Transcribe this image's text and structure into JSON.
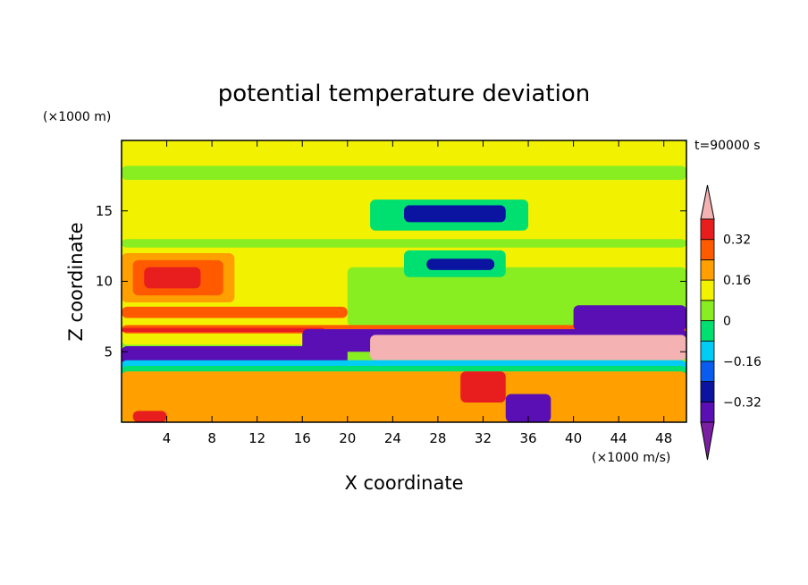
{
  "chart_data": {
    "type": "heatmap",
    "title": "potential temperature deviation",
    "xlabel": "X coordinate",
    "ylabel": "Z coordinate",
    "x_unit": "(×1000 m/s)",
    "y_unit": "(×1000 m)",
    "time_label": "t=90000 s",
    "xlim": [
      0,
      50
    ],
    "ylim": [
      0,
      20
    ],
    "x_ticks": [
      4,
      8,
      12,
      16,
      20,
      24,
      28,
      32,
      36,
      40,
      44,
      48
    ],
    "y_ticks": [
      5,
      10,
      15
    ],
    "colorbar": {
      "levels": [
        -0.4,
        -0.32,
        -0.24,
        -0.16,
        -0.08,
        0,
        0.08,
        0.16,
        0.24,
        0.32,
        0.4
      ],
      "labels": [
        "0.32",
        "0.16",
        "0",
        "−0.16",
        "−0.32"
      ],
      "label_values": [
        0.32,
        0.16,
        0,
        -0.16,
        -0.32
      ],
      "colors": [
        "#7a1fa2",
        "#5a0fb4",
        "#0a14a0",
        "#0a5cf0",
        "#00ccf5",
        "#00e070",
        "#88ee22",
        "#f2f200",
        "#ffa000",
        "#ff5a00",
        "#e81e1e",
        "#f4b2b2"
      ],
      "extend": "both"
    },
    "regions": [
      {
        "value": 0.08,
        "x": [
          0,
          50
        ],
        "z": [
          5.5,
          20
        ]
      },
      {
        "value": 0.0,
        "x": [
          0,
          50
        ],
        "z": [
          17.2,
          18.2
        ]
      },
      {
        "value": 0.0,
        "x": [
          0,
          50
        ],
        "z": [
          12.4,
          13.0
        ]
      },
      {
        "value": 0.0,
        "x": [
          20,
          50
        ],
        "z": [
          6.8,
          11.0
        ]
      },
      {
        "value": -0.08,
        "x": [
          22,
          36
        ],
        "z": [
          13.6,
          15.8
        ]
      },
      {
        "value": -0.32,
        "x": [
          25,
          34
        ],
        "z": [
          14.2,
          15.4
        ]
      },
      {
        "value": -0.08,
        "x": [
          25,
          34
        ],
        "z": [
          10.3,
          12.2
        ]
      },
      {
        "value": -0.32,
        "x": [
          27,
          33
        ],
        "z": [
          10.8,
          11.6
        ]
      },
      {
        "value": 0.16,
        "x": [
          0,
          10
        ],
        "z": [
          8.5,
          12.0
        ]
      },
      {
        "value": 0.24,
        "x": [
          1,
          9
        ],
        "z": [
          9.0,
          11.5
        ]
      },
      {
        "value": 0.32,
        "x": [
          2,
          7
        ],
        "z": [
          9.5,
          11.0
        ]
      },
      {
        "value": 0.24,
        "x": [
          0,
          20
        ],
        "z": [
          7.4,
          8.2
        ]
      },
      {
        "value": 0.24,
        "x": [
          0,
          50
        ],
        "z": [
          6.3,
          6.9
        ]
      },
      {
        "value": 0.32,
        "x": [
          0,
          18
        ],
        "z": [
          6.4,
          6.7
        ]
      },
      {
        "value": -0.4,
        "x": [
          16,
          50
        ],
        "z": [
          5.0,
          6.6
        ]
      },
      {
        "value": -0.4,
        "x": [
          40,
          50
        ],
        "z": [
          6.5,
          8.3
        ]
      },
      {
        "value": 0.4,
        "x": [
          22,
          50
        ],
        "z": [
          4.4,
          6.2
        ]
      },
      {
        "value": -0.4,
        "x": [
          0,
          20
        ],
        "z": [
          4.1,
          5.4
        ]
      },
      {
        "value": -0.16,
        "x": [
          0,
          50
        ],
        "z": [
          0,
          4.4
        ]
      },
      {
        "value": -0.08,
        "x": [
          0,
          50
        ],
        "z": [
          0,
          4.0
        ]
      },
      {
        "value": 0.16,
        "x": [
          0,
          50
        ],
        "z": [
          0,
          3.6
        ]
      },
      {
        "value": 0.32,
        "x": [
          30,
          34
        ],
        "z": [
          1.4,
          3.6
        ]
      },
      {
        "value": -0.4,
        "x": [
          34,
          38
        ],
        "z": [
          0,
          2.0
        ]
      },
      {
        "value": 0.32,
        "x": [
          1,
          4
        ],
        "z": [
          0,
          0.8
        ]
      }
    ]
  }
}
